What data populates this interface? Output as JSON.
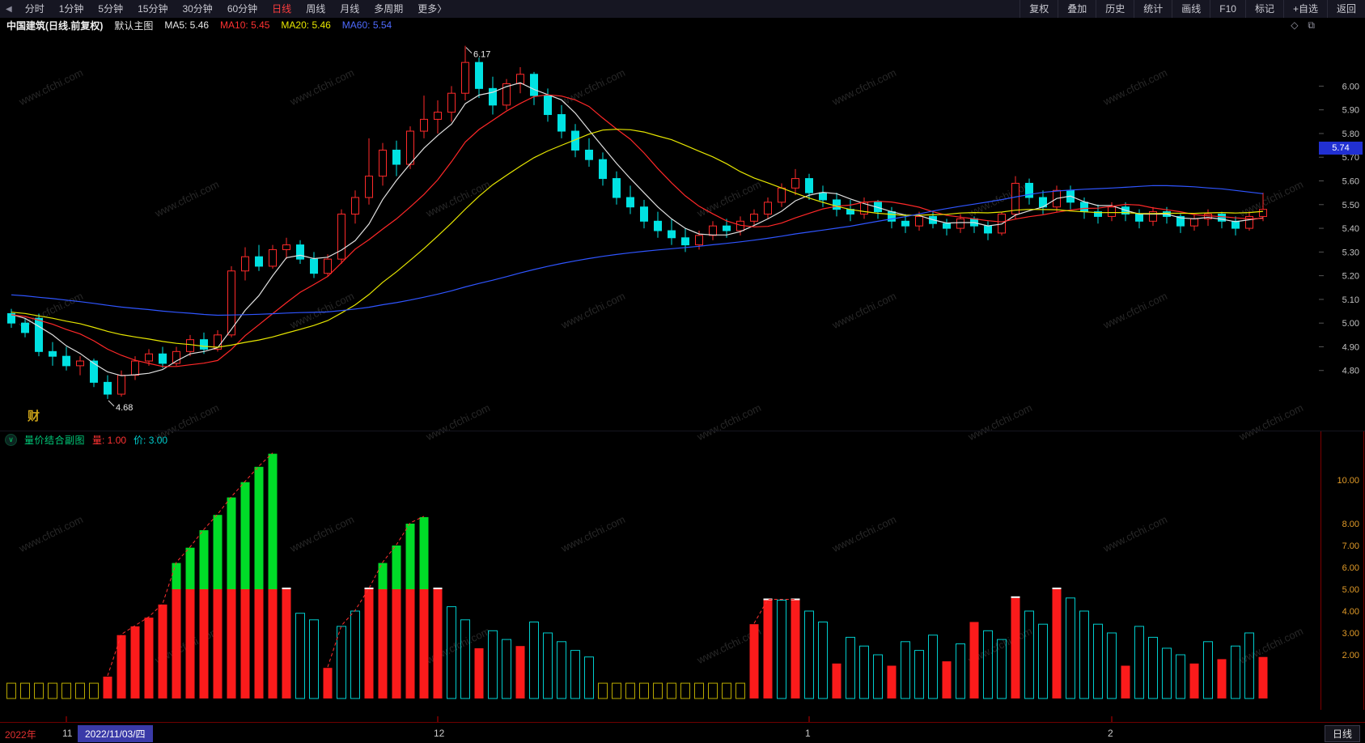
{
  "toolbar": {
    "collapse_icon": "◀",
    "left_items": [
      {
        "id": "fenshi",
        "label": "分时",
        "active": false
      },
      {
        "id": "1min",
        "label": "1分钟",
        "active": false
      },
      {
        "id": "5min",
        "label": "5分钟",
        "active": false
      },
      {
        "id": "15min",
        "label": "15分钟",
        "active": false
      },
      {
        "id": "30min",
        "label": "30分钟",
        "active": false
      },
      {
        "id": "60min",
        "label": "60分钟",
        "active": false
      },
      {
        "id": "daily",
        "label": "日线",
        "active": true
      },
      {
        "id": "weekly",
        "label": "周线",
        "active": false
      },
      {
        "id": "monthly",
        "label": "月线",
        "active": false
      },
      {
        "id": "multi-period",
        "label": "多周期",
        "active": false
      },
      {
        "id": "more",
        "label": "更多〉",
        "active": false
      }
    ],
    "right_items": [
      {
        "id": "fuquan",
        "label": "复权"
      },
      {
        "id": "diejia",
        "label": "叠加"
      },
      {
        "id": "lishi",
        "label": "历史"
      },
      {
        "id": "tongji",
        "label": "统计"
      },
      {
        "id": "huaxian",
        "label": "画线"
      },
      {
        "id": "f10",
        "label": "F10"
      },
      {
        "id": "biaoji",
        "label": "标记"
      },
      {
        "id": "zixuan",
        "label": "+自选"
      },
      {
        "id": "fanhui",
        "label": "返回"
      }
    ]
  },
  "header": {
    "title": "中国建筑(日线.前复权)",
    "layout_label": "默认主图",
    "ma_labels": [
      {
        "text": "MA5: 5.46",
        "color": "#e8e8e8"
      },
      {
        "text": "MA10: 5.45",
        "color": "#ff3232"
      },
      {
        "text": "MA20: 5.46",
        "color": "#e6e600"
      },
      {
        "text": "MA60: 5.54",
        "color": "#4f6bff"
      }
    ],
    "corner_icons": [
      {
        "name": "diamond-icon",
        "glyph": "◇"
      },
      {
        "name": "window-icon",
        "glyph": "⧉"
      }
    ]
  },
  "main_chart": {
    "price_badge": {
      "value": "5.74",
      "price": 5.74,
      "bg": "#2130d2"
    },
    "logo_text": "财",
    "watermark": "www.cfchi.com"
  },
  "sub_chart": {
    "toggle_icon": "∨",
    "title": "量价结合副图",
    "title_color": "#00c878",
    "legend": [
      {
        "text": "量: 1.00",
        "color": "#ff3232"
      },
      {
        "text": "价: 3.00",
        "color": "#00cdcd"
      }
    ]
  },
  "date_bar": {
    "year_label": "2022年",
    "selected_date": "2022/11/03/四",
    "month_ticks": [
      {
        "label": "11",
        "index": 4
      },
      {
        "label": "12",
        "index": 31
      },
      {
        "label": "1",
        "index": 58
      },
      {
        "label": "2",
        "index": 80
      }
    ],
    "period_label": "日线"
  },
  "chart_data": {
    "type": "candlestick",
    "title": "中国建筑 日线 前复权",
    "price_axis_ticks": [
      6.0,
      5.9,
      5.8,
      5.7,
      5.6,
      5.5,
      5.4,
      5.3,
      5.2,
      5.1,
      5.0,
      4.9,
      4.8
    ],
    "price_range": [
      4.56,
      6.22
    ],
    "colors": {
      "up": "#ff2a2a",
      "down": "#00e2e2"
    },
    "annotations": [
      {
        "text": "6.17",
        "index": 33,
        "type": "high"
      },
      {
        "text": "4.68",
        "index": 7,
        "type": "low"
      }
    ],
    "ma_lines": [
      {
        "name": "MA5",
        "period": 5,
        "color": "#e0e0e0"
      },
      {
        "name": "MA10",
        "period": 10,
        "color": "#ff2828"
      },
      {
        "name": "MA20",
        "period": 20,
        "color": "#e6e600"
      },
      {
        "name": "MA60",
        "period": 60,
        "color": "#2f55ff"
      }
    ],
    "ma_seed_closes": [
      5.22,
      5.2,
      5.24,
      5.19,
      5.21,
      5.23,
      5.18,
      5.2,
      5.22,
      5.17,
      5.19,
      5.21,
      5.16,
      5.18,
      5.2,
      5.15,
      5.17,
      5.19,
      5.14,
      5.16,
      5.18,
      5.13,
      5.15,
      5.17,
      5.12,
      5.14,
      5.16,
      5.11,
      5.13,
      5.15,
      5.14,
      5.12,
      5.13,
      5.11,
      5.12,
      5.1,
      5.11,
      5.09,
      5.1,
      5.08,
      5.09,
      5.07,
      5.08,
      5.06,
      5.07,
      5.05,
      5.06,
      5.04,
      5.05,
      5.04,
      5.05,
      5.03,
      5.04,
      5.03,
      5.04,
      5.03,
      5.04,
      5.05,
      5.04,
      5.05
    ],
    "candles": [
      [
        5.04,
        5.06,
        4.98,
        5.0
      ],
      [
        5.0,
        5.02,
        4.94,
        4.96
      ],
      [
        5.02,
        5.04,
        4.86,
        4.88
      ],
      [
        4.88,
        4.92,
        4.82,
        4.86
      ],
      [
        4.86,
        4.9,
        4.8,
        4.82
      ],
      [
        4.82,
        4.86,
        4.78,
        4.84
      ],
      [
        4.84,
        4.85,
        4.73,
        4.75
      ],
      [
        4.75,
        4.78,
        4.68,
        4.7
      ],
      [
        4.7,
        4.8,
        4.69,
        4.78
      ],
      [
        4.78,
        4.86,
        4.76,
        4.84
      ],
      [
        4.84,
        4.89,
        4.82,
        4.87
      ],
      [
        4.87,
        4.9,
        4.81,
        4.83
      ],
      [
        4.83,
        4.9,
        4.82,
        4.88
      ],
      [
        4.88,
        4.95,
        4.86,
        4.93
      ],
      [
        4.93,
        4.96,
        4.87,
        4.89
      ],
      [
        4.89,
        4.97,
        4.88,
        4.95
      ],
      [
        4.95,
        5.24,
        4.94,
        5.22
      ],
      [
        5.22,
        5.32,
        5.18,
        5.28
      ],
      [
        5.28,
        5.33,
        5.22,
        5.24
      ],
      [
        5.24,
        5.33,
        5.23,
        5.31
      ],
      [
        5.31,
        5.36,
        5.27,
        5.33
      ],
      [
        5.33,
        5.35,
        5.25,
        5.27
      ],
      [
        5.27,
        5.3,
        5.19,
        5.21
      ],
      [
        5.21,
        5.29,
        5.2,
        5.27
      ],
      [
        5.27,
        5.48,
        5.25,
        5.46
      ],
      [
        5.46,
        5.56,
        5.42,
        5.53
      ],
      [
        5.53,
        5.78,
        5.5,
        5.62
      ],
      [
        5.62,
        5.76,
        5.58,
        5.73
      ],
      [
        5.73,
        5.77,
        5.62,
        5.67
      ],
      [
        5.67,
        5.83,
        5.65,
        5.81
      ],
      [
        5.81,
        5.96,
        5.78,
        5.86
      ],
      [
        5.86,
        5.94,
        5.8,
        5.89
      ],
      [
        5.89,
        6.0,
        5.85,
        5.97
      ],
      [
        5.97,
        6.17,
        5.94,
        6.1
      ],
      [
        6.1,
        6.12,
        5.95,
        5.99
      ],
      [
        5.99,
        6.04,
        5.88,
        5.92
      ],
      [
        5.92,
        6.03,
        5.9,
        6.01
      ],
      [
        6.01,
        6.08,
        5.97,
        6.05
      ],
      [
        6.05,
        6.06,
        5.92,
        5.96
      ],
      [
        5.96,
        5.99,
        5.85,
        5.88
      ],
      [
        5.88,
        5.92,
        5.78,
        5.81
      ],
      [
        5.81,
        5.84,
        5.7,
        5.73
      ],
      [
        5.73,
        5.78,
        5.66,
        5.69
      ],
      [
        5.69,
        5.72,
        5.58,
        5.61
      ],
      [
        5.61,
        5.64,
        5.5,
        5.53
      ],
      [
        5.53,
        5.58,
        5.46,
        5.49
      ],
      [
        5.49,
        5.52,
        5.4,
        5.43
      ],
      [
        5.43,
        5.47,
        5.36,
        5.39
      ],
      [
        5.39,
        5.44,
        5.33,
        5.36
      ],
      [
        5.36,
        5.4,
        5.3,
        5.33
      ],
      [
        5.33,
        5.39,
        5.31,
        5.37
      ],
      [
        5.37,
        5.43,
        5.35,
        5.41
      ],
      [
        5.41,
        5.44,
        5.36,
        5.39
      ],
      [
        5.39,
        5.45,
        5.37,
        5.43
      ],
      [
        5.43,
        5.48,
        5.41,
        5.46
      ],
      [
        5.46,
        5.53,
        5.44,
        5.51
      ],
      [
        5.51,
        5.59,
        5.49,
        5.57
      ],
      [
        5.57,
        5.65,
        5.54,
        5.61
      ],
      [
        5.61,
        5.63,
        5.52,
        5.55
      ],
      [
        5.55,
        5.58,
        5.49,
        5.52
      ],
      [
        5.52,
        5.55,
        5.45,
        5.48
      ],
      [
        5.48,
        5.52,
        5.43,
        5.46
      ],
      [
        5.46,
        5.53,
        5.44,
        5.51
      ],
      [
        5.51,
        5.52,
        5.44,
        5.47
      ],
      [
        5.47,
        5.49,
        5.4,
        5.43
      ],
      [
        5.43,
        5.46,
        5.38,
        5.41
      ],
      [
        5.41,
        5.47,
        5.39,
        5.45
      ],
      [
        5.45,
        5.47,
        5.4,
        5.42
      ],
      [
        5.42,
        5.44,
        5.37,
        5.4
      ],
      [
        5.4,
        5.46,
        5.38,
        5.44
      ],
      [
        5.44,
        5.45,
        5.38,
        5.41
      ],
      [
        5.41,
        5.43,
        5.35,
        5.38
      ],
      [
        5.38,
        5.47,
        5.37,
        5.46
      ],
      [
        5.46,
        5.62,
        5.44,
        5.59
      ],
      [
        5.59,
        5.61,
        5.5,
        5.53
      ],
      [
        5.53,
        5.56,
        5.46,
        5.49
      ],
      [
        5.49,
        5.58,
        5.47,
        5.56
      ],
      [
        5.56,
        5.58,
        5.48,
        5.51
      ],
      [
        5.51,
        5.53,
        5.44,
        5.47
      ],
      [
        5.47,
        5.5,
        5.42,
        5.45
      ],
      [
        5.45,
        5.51,
        5.43,
        5.49
      ],
      [
        5.49,
        5.51,
        5.43,
        5.46
      ],
      [
        5.46,
        5.48,
        5.4,
        5.43
      ],
      [
        5.43,
        5.49,
        5.41,
        5.47
      ],
      [
        5.47,
        5.49,
        5.42,
        5.45
      ],
      [
        5.45,
        5.46,
        5.38,
        5.41
      ],
      [
        5.41,
        5.46,
        5.39,
        5.44
      ],
      [
        5.44,
        5.48,
        5.41,
        5.46
      ],
      [
        5.46,
        5.47,
        5.4,
        5.43
      ],
      [
        5.43,
        5.45,
        5.37,
        5.4
      ],
      [
        5.4,
        5.47,
        5.39,
        5.45
      ],
      [
        5.45,
        5.55,
        5.43,
        5.48
      ]
    ],
    "volume": {
      "axis_ticks": [
        10,
        8,
        7,
        6,
        5,
        4,
        3,
        2
      ],
      "value_range": [
        0,
        11.5
      ],
      "green_base": 5.0,
      "colors": {
        "volume_bar": "#fb1b1b",
        "price_bar": "#00dc28",
        "hollow": "#00cdcd",
        "idle_box": "#b8a800",
        "trend_line": "#ff3030"
      },
      "trend_segments": [
        [
          7,
          19
        ],
        [
          23,
          30
        ],
        [
          54,
          57
        ]
      ],
      "bars": [
        [
          0.7,
          "Y"
        ],
        [
          0.7,
          "Y"
        ],
        [
          0.7,
          "Y"
        ],
        [
          0.7,
          "Y"
        ],
        [
          0.7,
          "Y"
        ],
        [
          0.7,
          "Y"
        ],
        [
          0.7,
          "Y"
        ],
        [
          1.0,
          "R"
        ],
        [
          2.9,
          "R"
        ],
        [
          3.3,
          "R"
        ],
        [
          3.7,
          "R"
        ],
        [
          4.3,
          "R"
        ],
        [
          6.2,
          "G"
        ],
        [
          6.9,
          "G"
        ],
        [
          7.7,
          "G"
        ],
        [
          8.4,
          "G"
        ],
        [
          9.2,
          "G"
        ],
        [
          9.9,
          "G"
        ],
        [
          10.6,
          "G"
        ],
        [
          11.2,
          "G"
        ],
        [
          5.0,
          "R"
        ],
        [
          3.9,
          "C"
        ],
        [
          3.6,
          "C"
        ],
        [
          1.4,
          "R"
        ],
        [
          3.3,
          "C"
        ],
        [
          4.0,
          "C"
        ],
        [
          5.0,
          "R"
        ],
        [
          6.2,
          "G"
        ],
        [
          7.0,
          "G"
        ],
        [
          8.0,
          "G"
        ],
        [
          8.3,
          "G"
        ],
        [
          5.0,
          "R"
        ],
        [
          4.2,
          "C"
        ],
        [
          3.6,
          "C"
        ],
        [
          2.3,
          "R"
        ],
        [
          3.1,
          "C"
        ],
        [
          2.7,
          "C"
        ],
        [
          2.4,
          "R"
        ],
        [
          3.5,
          "C"
        ],
        [
          3.0,
          "C"
        ],
        [
          2.6,
          "C"
        ],
        [
          2.2,
          "C"
        ],
        [
          1.9,
          "C"
        ],
        [
          0.7,
          "Y"
        ],
        [
          0.7,
          "Y"
        ],
        [
          0.7,
          "Y"
        ],
        [
          0.7,
          "Y"
        ],
        [
          0.7,
          "Y"
        ],
        [
          0.7,
          "Y"
        ],
        [
          0.7,
          "Y"
        ],
        [
          0.7,
          "Y"
        ],
        [
          0.7,
          "Y"
        ],
        [
          0.7,
          "Y"
        ],
        [
          0.7,
          "Y"
        ],
        [
          3.4,
          "R"
        ],
        [
          4.5,
          "R"
        ],
        [
          4.5,
          "C"
        ],
        [
          4.5,
          "R"
        ],
        [
          4.0,
          "C"
        ],
        [
          3.5,
          "C"
        ],
        [
          1.6,
          "R"
        ],
        [
          2.8,
          "C"
        ],
        [
          2.4,
          "C"
        ],
        [
          2.0,
          "C"
        ],
        [
          1.5,
          "R"
        ],
        [
          2.6,
          "C"
        ],
        [
          2.2,
          "C"
        ],
        [
          2.9,
          "C"
        ],
        [
          1.7,
          "R"
        ],
        [
          2.5,
          "C"
        ],
        [
          3.5,
          "R"
        ],
        [
          3.1,
          "C"
        ],
        [
          2.7,
          "C"
        ],
        [
          4.6,
          "R"
        ],
        [
          4.0,
          "C"
        ],
        [
          3.4,
          "C"
        ],
        [
          5.0,
          "R"
        ],
        [
          4.6,
          "C"
        ],
        [
          4.0,
          "C"
        ],
        [
          3.4,
          "C"
        ],
        [
          3.0,
          "C"
        ],
        [
          1.5,
          "R"
        ],
        [
          3.3,
          "C"
        ],
        [
          2.8,
          "C"
        ],
        [
          2.3,
          "C"
        ],
        [
          2.0,
          "C"
        ],
        [
          1.6,
          "R"
        ],
        [
          2.6,
          "C"
        ],
        [
          1.8,
          "R"
        ],
        [
          2.4,
          "C"
        ],
        [
          3.0,
          "C"
        ],
        [
          1.9,
          "R"
        ]
      ]
    }
  }
}
